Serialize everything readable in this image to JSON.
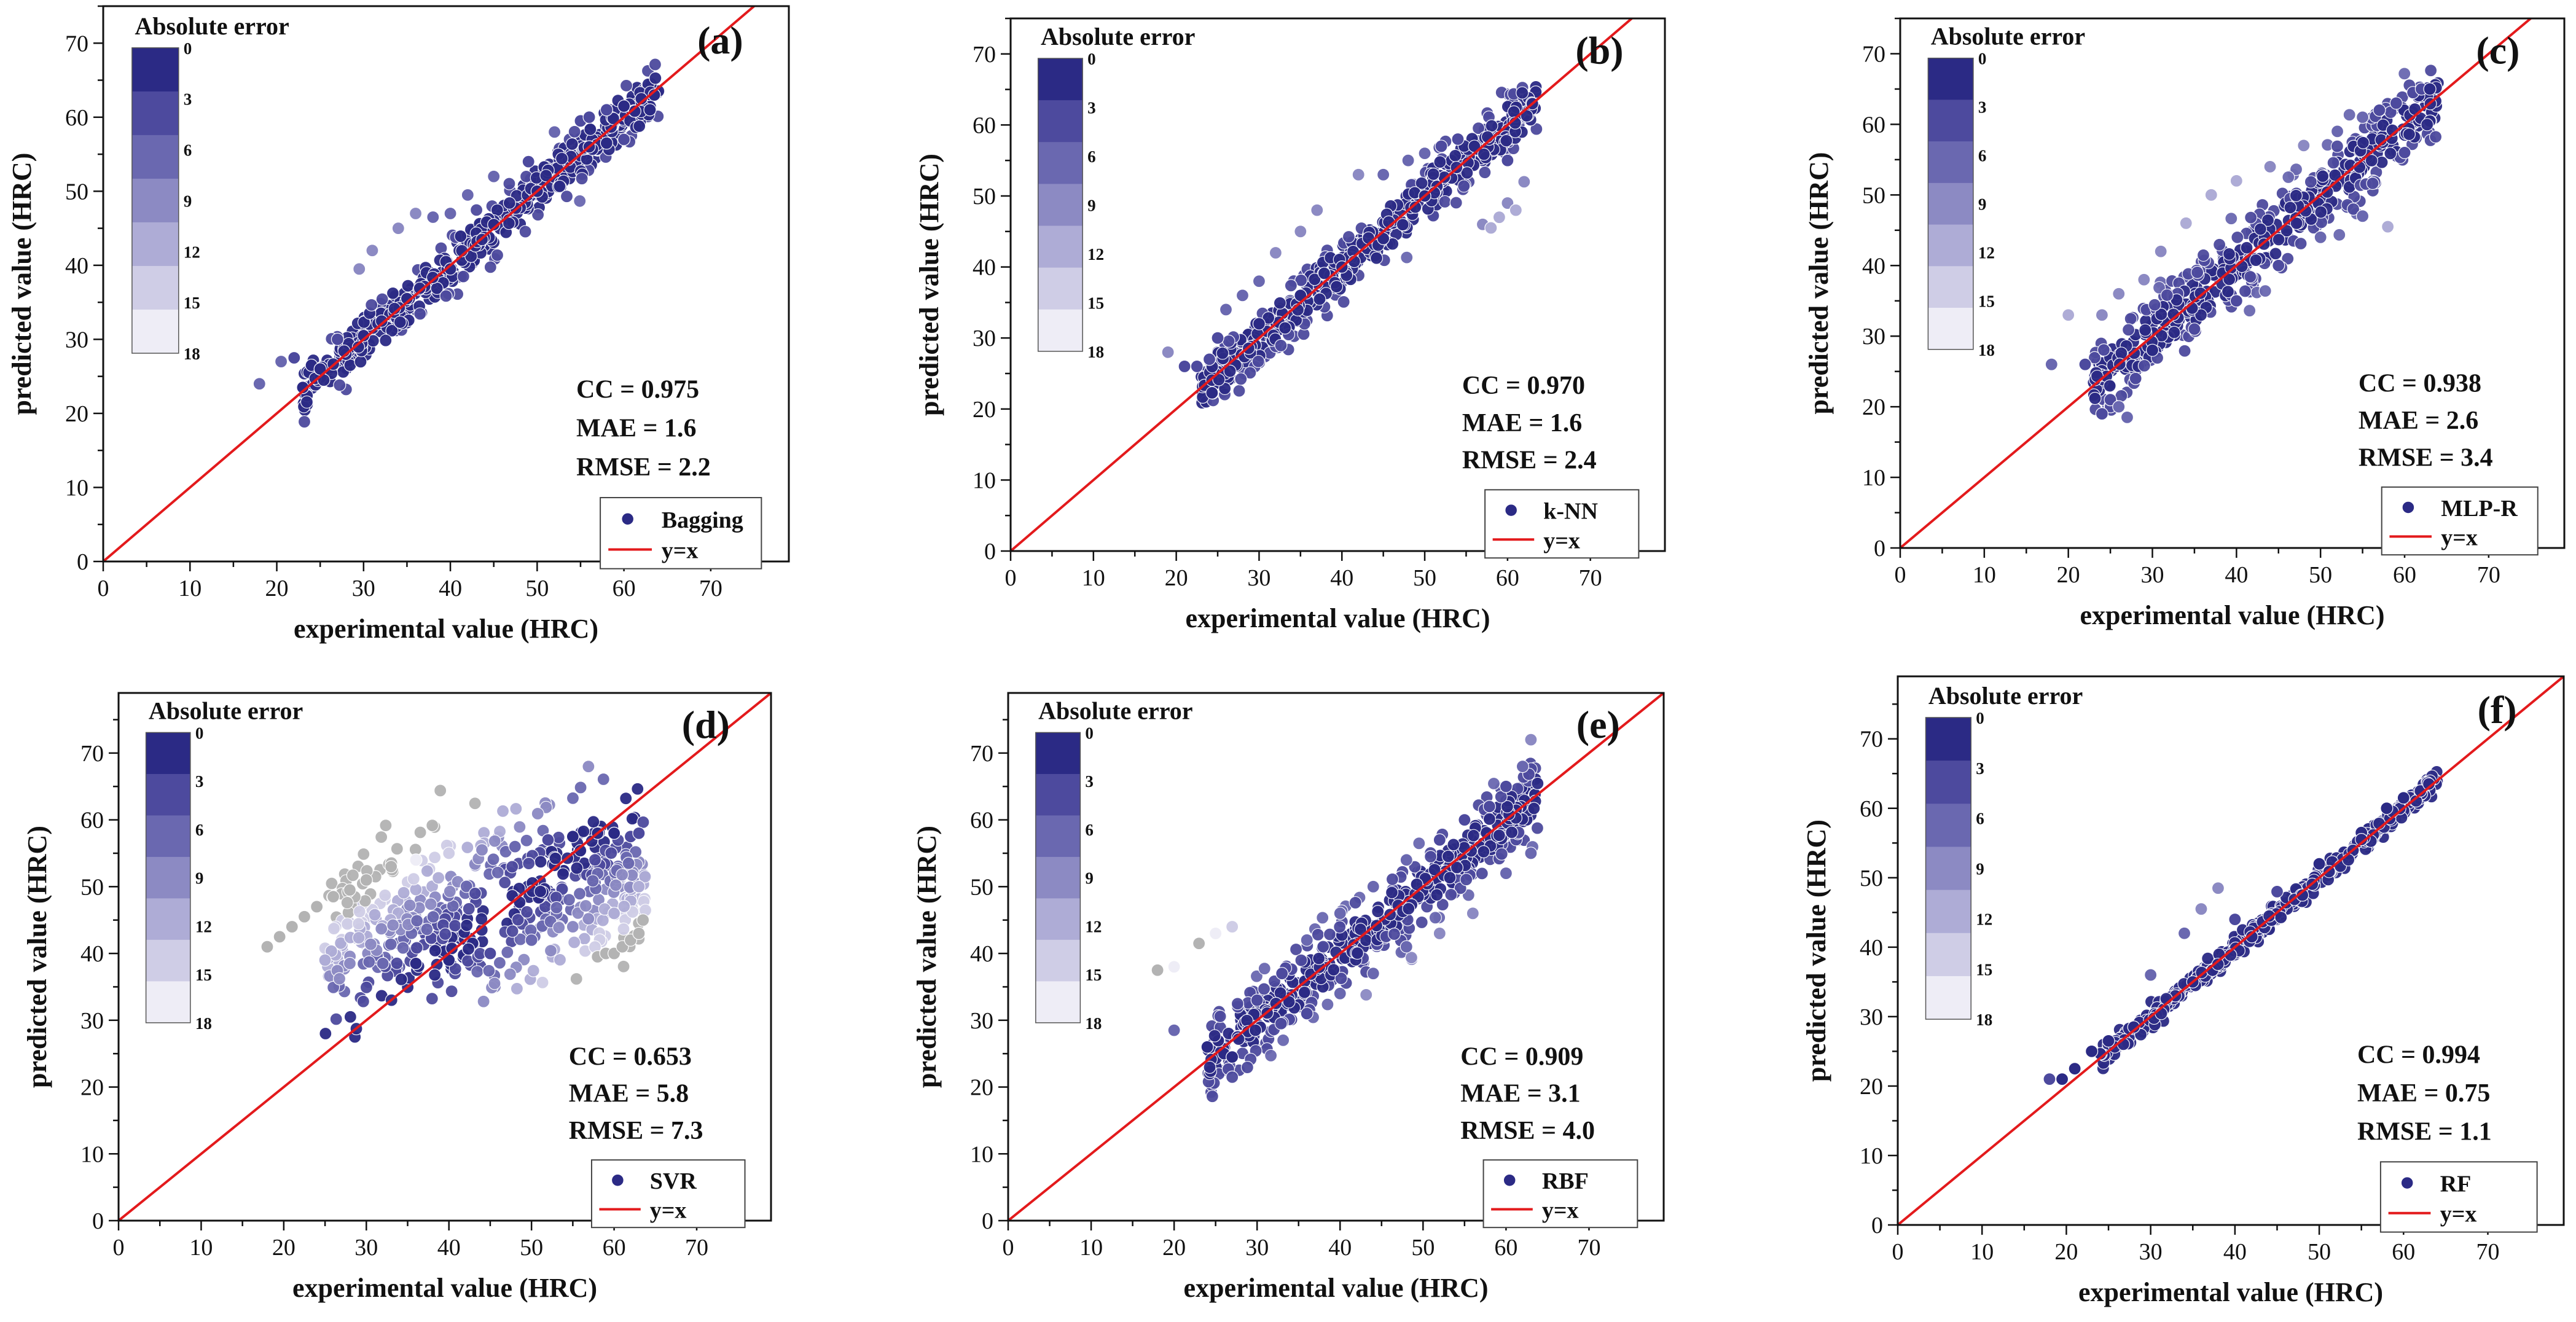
{
  "figure": {
    "colorbar": {
      "title": "Absolute error",
      "ticks": [
        "0",
        "3",
        "6",
        "9",
        "12",
        "15",
        "18"
      ],
      "colors": [
        "#2b2a85",
        "#4d4a9e",
        "#6a68b0",
        "#8c8ac3",
        "#aeacd6",
        "#cfcde6",
        "#eeedf6"
      ]
    },
    "colors": {
      "identity_line": "#e31a1c",
      "frame": "#111111",
      "gray_points": "#b3b3b3"
    },
    "legend_line_label": "y=x"
  },
  "chart_data": [
    {
      "type": "scatter",
      "panel_label": "(a)",
      "model": "Bagging",
      "xlabel": "experimental value (HRC)",
      "ylabel": "predicted value (HRC)",
      "xlim": [
        0,
        79
      ],
      "ylim": [
        0,
        75
      ],
      "xticks": [
        "0",
        "10",
        "20",
        "30",
        "40",
        "50",
        "60",
        "70"
      ],
      "yticks": [
        "0",
        "10",
        "20",
        "30",
        "40",
        "50",
        "60",
        "70"
      ],
      "stats": {
        "cc": "CC = 0.975",
        "mae": "MAE = 1.6",
        "rmse": "RMSE = 2.2"
      },
      "points": [
        [
          18,
          24
        ],
        [
          20.5,
          27
        ],
        [
          22,
          27.5
        ],
        [
          23,
          23.5
        ],
        [
          24,
          26.5
        ],
        [
          27,
          30
        ],
        [
          29.5,
          39.5
        ],
        [
          31,
          42
        ],
        [
          34,
          45
        ],
        [
          36,
          47
        ],
        [
          38,
          46.5
        ],
        [
          40,
          47
        ],
        [
          42,
          49.5
        ],
        [
          45,
          52
        ],
        [
          49,
          54
        ],
        [
          52,
          58
        ],
        [
          55,
          59.5
        ],
        [
          56,
          60
        ],
        [
          58,
          61
        ],
        [
          60,
          61.5
        ],
        [
          62,
          62.5
        ],
        [
          63,
          61
        ],
        [
          60,
          57
        ],
        [
          58,
          56.5
        ],
        [
          56,
          56
        ],
        [
          50,
          50
        ],
        [
          45,
          45.5
        ],
        [
          40,
          39.5
        ],
        [
          35,
          35.5
        ],
        [
          30,
          30.5
        ],
        [
          25,
          26
        ],
        [
          63.5,
          63
        ]
      ],
      "band": {
        "x_min": 23,
        "x_max": 64,
        "spread": 2.2,
        "extra_spread": 1.5
      }
    },
    {
      "type": "scatter",
      "panel_label": "(b)",
      "model": "k-NN",
      "xlabel": "experimental value (HRC)",
      "ylabel": "predicted value (HRC)",
      "xlim": [
        0,
        79
      ],
      "ylim": [
        0,
        75
      ],
      "xticks": [
        "0",
        "10",
        "20",
        "30",
        "40",
        "50",
        "60",
        "70"
      ],
      "yticks": [
        "0",
        "10",
        "20",
        "30",
        "40",
        "50",
        "60",
        "70"
      ],
      "stats": {
        "cc": "CC = 0.970",
        "mae": "MAE = 1.6",
        "rmse": "RMSE = 2.4"
      },
      "points": [
        [
          19,
          28
        ],
        [
          21,
          26
        ],
        [
          22.5,
          26
        ],
        [
          24,
          27
        ],
        [
          25,
          30
        ],
        [
          26,
          34
        ],
        [
          28,
          36
        ],
        [
          30,
          38
        ],
        [
          32,
          42
        ],
        [
          35,
          45
        ],
        [
          37,
          48
        ],
        [
          42,
          53
        ],
        [
          45,
          53
        ],
        [
          48,
          55
        ],
        [
          50,
          56
        ],
        [
          52,
          57
        ],
        [
          54,
          58
        ],
        [
          57,
          46
        ],
        [
          58,
          45.5
        ],
        [
          59,
          47
        ],
        [
          60,
          49
        ],
        [
          61,
          48
        ],
        [
          62,
          52
        ],
        [
          60,
          55
        ],
        [
          56,
          57
        ],
        [
          50,
          50
        ],
        [
          45,
          44
        ],
        [
          40,
          40
        ],
        [
          35,
          36
        ],
        [
          30,
          32
        ],
        [
          63,
          63
        ]
      ],
      "band": {
        "x_min": 23,
        "x_max": 63.5,
        "spread": 2.4,
        "extra_spread": 2.5
      }
    },
    {
      "type": "scatter",
      "panel_label": "(c)",
      "model": "MLP-R",
      "xlabel": "experimental value (HRC)",
      "ylabel": "predicted value (HRC)",
      "xlim": [
        0,
        79
      ],
      "ylim": [
        0,
        75
      ],
      "xticks": [
        "0",
        "10",
        "20",
        "30",
        "40",
        "50",
        "60",
        "70"
      ],
      "yticks": [
        "0",
        "10",
        "20",
        "30",
        "40",
        "50",
        "60",
        "70"
      ],
      "stats": {
        "cc": "CC = 0.938",
        "mae": "MAE = 2.6",
        "rmse": "RMSE = 3.4"
      },
      "points": [
        [
          18,
          26
        ],
        [
          20,
          33
        ],
        [
          22,
          26
        ],
        [
          24,
          19
        ],
        [
          25,
          21
        ],
        [
          26,
          20
        ],
        [
          27,
          18.5
        ],
        [
          28,
          24
        ],
        [
          24,
          33
        ],
        [
          26,
          36
        ],
        [
          29,
          38
        ],
        [
          31,
          42
        ],
        [
          34,
          46
        ],
        [
          37,
          50
        ],
        [
          40,
          52
        ],
        [
          44,
          54
        ],
        [
          48,
          57
        ],
        [
          52,
          59
        ],
        [
          55,
          61
        ],
        [
          57,
          62
        ],
        [
          59,
          63
        ],
        [
          61,
          64.5
        ],
        [
          62,
          65
        ],
        [
          63,
          65
        ],
        [
          58,
          45.5
        ],
        [
          55,
          47
        ],
        [
          50,
          44
        ],
        [
          45,
          40
        ],
        [
          40,
          35
        ],
        [
          35,
          31
        ],
        [
          30,
          28
        ],
        [
          60,
          56
        ]
      ],
      "band": {
        "x_min": 23,
        "x_max": 64,
        "spread": 3.4,
        "extra_spread": 3.0
      }
    },
    {
      "type": "scatter",
      "panel_label": "(d)",
      "model": "SVR",
      "xlabel": "experimental value (HRC)",
      "ylabel": "predicted value (HRC)",
      "xlim": [
        0,
        79
      ],
      "ylim": [
        0,
        79
      ],
      "xticks": [
        "0",
        "10",
        "20",
        "30",
        "40",
        "50",
        "60",
        "70"
      ],
      "yticks": [
        "0",
        "10",
        "20",
        "30",
        "40",
        "50",
        "60",
        "70"
      ],
      "stats": {
        "cc": "CC = 0.653",
        "mae": "MAE = 5.8",
        "rmse": "RMSE = 7.3"
      },
      "points": [
        [
          18,
          41
        ],
        [
          19.5,
          42.5
        ],
        [
          21,
          44
        ],
        [
          22.5,
          45.5
        ],
        [
          24,
          47
        ],
        [
          26,
          48.5
        ],
        [
          28,
          49.5
        ],
        [
          30,
          51
        ],
        [
          33,
          53
        ],
        [
          36,
          54
        ],
        [
          40,
          55
        ],
        [
          44,
          55.5
        ],
        [
          48,
          56
        ],
        [
          52,
          57
        ],
        [
          55,
          57.5
        ],
        [
          58,
          58
        ],
        [
          60,
          58
        ],
        [
          62,
          57.5
        ],
        [
          63,
          58
        ],
        [
          58,
          39.5
        ],
        [
          59,
          40
        ],
        [
          60,
          40
        ],
        [
          61,
          41
        ],
        [
          62,
          42
        ],
        [
          63,
          43
        ],
        [
          63.5,
          45
        ],
        [
          25,
          39
        ],
        [
          28,
          38.5
        ],
        [
          32,
          38.5
        ],
        [
          36,
          38.5
        ],
        [
          40,
          39
        ],
        [
          45,
          40
        ],
        [
          50,
          42
        ],
        [
          55,
          44
        ],
        [
          60,
          46
        ],
        [
          63,
          50
        ]
      ],
      "band": {
        "x_min": 25,
        "x_max": 64,
        "spread": 6.5,
        "extra_spread": 1.0,
        "flat_pred": 48,
        "flat_weight": 0.7
      }
    },
    {
      "type": "scatter",
      "panel_label": "(e)",
      "model": "RBF",
      "xlabel": "experimental value (HRC)",
      "ylabel": "predicted value (HRC)",
      "xlim": [
        0,
        79
      ],
      "ylim": [
        0,
        79
      ],
      "xticks": [
        "0",
        "10",
        "20",
        "30",
        "40",
        "50",
        "60",
        "70"
      ],
      "yticks": [
        "0",
        "10",
        "20",
        "30",
        "40",
        "50",
        "60",
        "70"
      ],
      "stats": {
        "cc": "CC = 0.909",
        "mae": "MAE = 3.1",
        "rmse": "RMSE = 4.0"
      },
      "points": [
        [
          18,
          37.5
        ],
        [
          20,
          38
        ],
        [
          23,
          41.5
        ],
        [
          25,
          43
        ],
        [
          27,
          44
        ],
        [
          20,
          28.5
        ],
        [
          24,
          26
        ],
        [
          26,
          25
        ],
        [
          27,
          24.5
        ],
        [
          30,
          33
        ],
        [
          33,
          37
        ],
        [
          36,
          42
        ],
        [
          40,
          46
        ],
        [
          44,
          50
        ],
        [
          48,
          54
        ],
        [
          52,
          57
        ],
        [
          55,
          60
        ],
        [
          58,
          62
        ],
        [
          60,
          65
        ],
        [
          62,
          68
        ],
        [
          63,
          72
        ],
        [
          63,
          55
        ],
        [
          60,
          52
        ],
        [
          56,
          46
        ],
        [
          52,
          43
        ],
        [
          48,
          41
        ],
        [
          44,
          37
        ],
        [
          40,
          34
        ],
        [
          36,
          31
        ]
      ],
      "band": {
        "x_min": 24,
        "x_max": 64,
        "spread": 3.6,
        "extra_spread": 3.0
      }
    },
    {
      "type": "scatter",
      "panel_label": "(f)",
      "model": "RF",
      "xlabel": "experimental value (HRC)",
      "ylabel": "predicted value (HRC)",
      "xlim": [
        0,
        79
      ],
      "ylim": [
        0,
        79
      ],
      "xticks": [
        "0",
        "10",
        "20",
        "30",
        "40",
        "50",
        "60",
        "70"
      ],
      "yticks": [
        "0",
        "10",
        "20",
        "30",
        "40",
        "50",
        "60",
        "70"
      ],
      "stats": {
        "cc": "CC = 0.994",
        "mae": "MAE = 0.75",
        "rmse": "RMSE = 1.1"
      },
      "points": [
        [
          18,
          21
        ],
        [
          19.5,
          21
        ],
        [
          21,
          22.5
        ],
        [
          23,
          25
        ],
        [
          25,
          26.5
        ],
        [
          30,
          36
        ],
        [
          34,
          42
        ],
        [
          36,
          45.5
        ],
        [
          38,
          48.5
        ],
        [
          40,
          44
        ],
        [
          45,
          48
        ],
        [
          50,
          52
        ],
        [
          55,
          56.5
        ],
        [
          58,
          60
        ],
        [
          60,
          61.5
        ],
        [
          62,
          62.5
        ],
        [
          63,
          63.5
        ],
        [
          55,
          55.5
        ],
        [
          48,
          47.5
        ],
        [
          42,
          41.5
        ],
        [
          35,
          35
        ],
        [
          28,
          28.5
        ]
      ],
      "band": {
        "x_min": 24,
        "x_max": 64,
        "spread": 0.9,
        "extra_spread": 0.5
      }
    }
  ]
}
